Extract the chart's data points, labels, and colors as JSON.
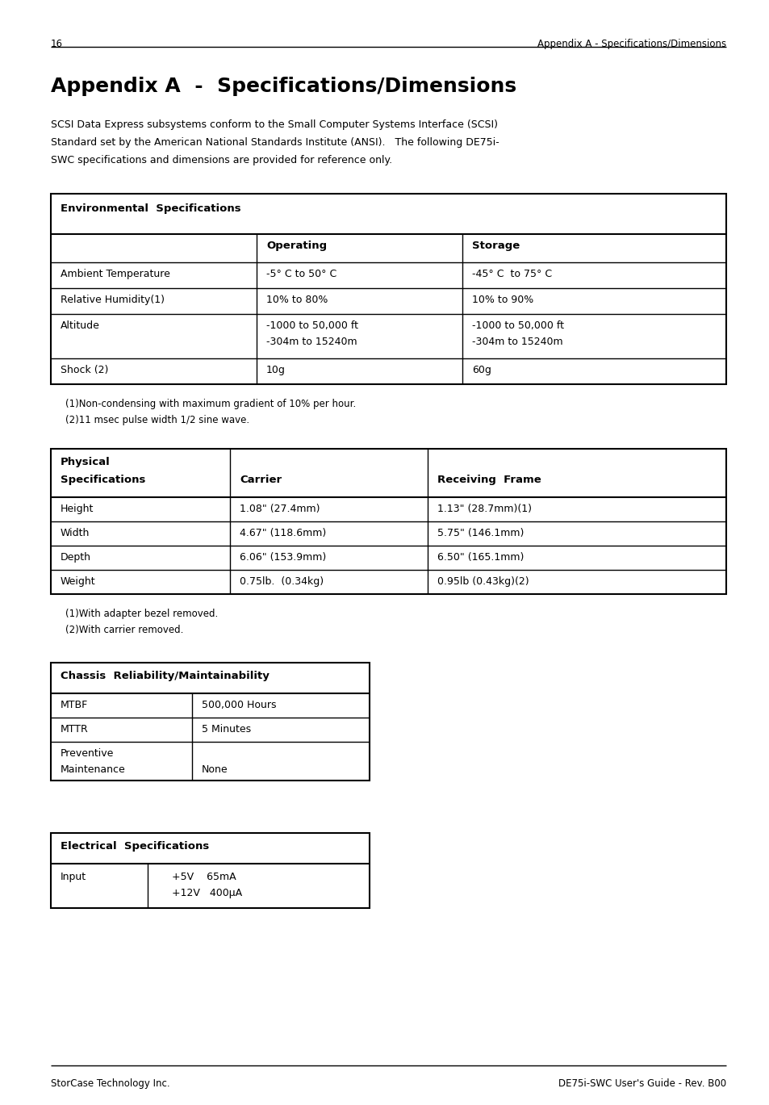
{
  "page_number": "16",
  "header_right": "Appendix A - Specifications/Dimensions",
  "title": "Appendix A  -  Specifications/Dimensions",
  "intro_lines": [
    "SCSI Data Express subsystems conform to the Small Computer Systems Interface (SCSI)",
    "Standard set by the American National Standards Institute (ANSI).   The following DE75i-",
    "SWC specifications and dimensions are provided for reference only."
  ],
  "env_header": "Environmental  Specifications",
  "env_col2": "Operating",
  "env_col3": "Storage",
  "env_rows": [
    [
      "Ambient Temperature",
      "-5° C to 50° C",
      "-45° C  to 75° C"
    ],
    [
      "Relative Humidity(1)",
      "10% to 80%",
      "10% to 90%"
    ],
    [
      "Altitude",
      "-1000 to 50,000 ft",
      "-1000 to 50,000 ft"
    ],
    [
      "",
      "-304m to 15240m",
      "-304m to 15240m"
    ],
    [
      "Shock (2)",
      "10g",
      "60g"
    ]
  ],
  "env_fn1": "(1)Non-condensing with maximum gradient of 10% per hour.",
  "env_fn2": "(2)11 msec pulse width 1/2 sine wave.",
  "phys_col1a": "Physical",
  "phys_col1b": "Specifications",
  "phys_col2": "Carrier",
  "phys_col3": "Receiving  Frame",
  "phys_rows": [
    [
      "Height",
      "1.08\" (27.4mm)",
      "1.13\" (28.7mm)(1)"
    ],
    [
      "Width",
      "4.67\" (118.6mm)",
      "5.75\" (146.1mm)"
    ],
    [
      "Depth",
      "6.06\" (153.9mm)",
      "6.50\" (165.1mm)"
    ],
    [
      "Weight",
      "0.75lb.  (0.34kg)",
      "0.95lb (0.43kg)(2)"
    ]
  ],
  "phys_fn1": "(1)With adapter bezel removed.",
  "phys_fn2": "(2)With carrier removed.",
  "chassis_header": "Chassis  Reliability/Maintainability",
  "chassis_rows": [
    [
      "MTBF",
      "500,000 Hours"
    ],
    [
      "MTTR",
      "5 Minutes"
    ],
    [
      "Preventive",
      ""
    ],
    [
      "Maintenance",
      "None"
    ]
  ],
  "elec_header": "Electrical  Specifications",
  "elec_input": "Input",
  "elec_r1": "+5V    65mA",
  "elec_r2": "+12V   400μA",
  "footer_left": "StorCase Technology Inc.",
  "footer_right": "DE75i-SWC User's Guide - Rev. B00"
}
